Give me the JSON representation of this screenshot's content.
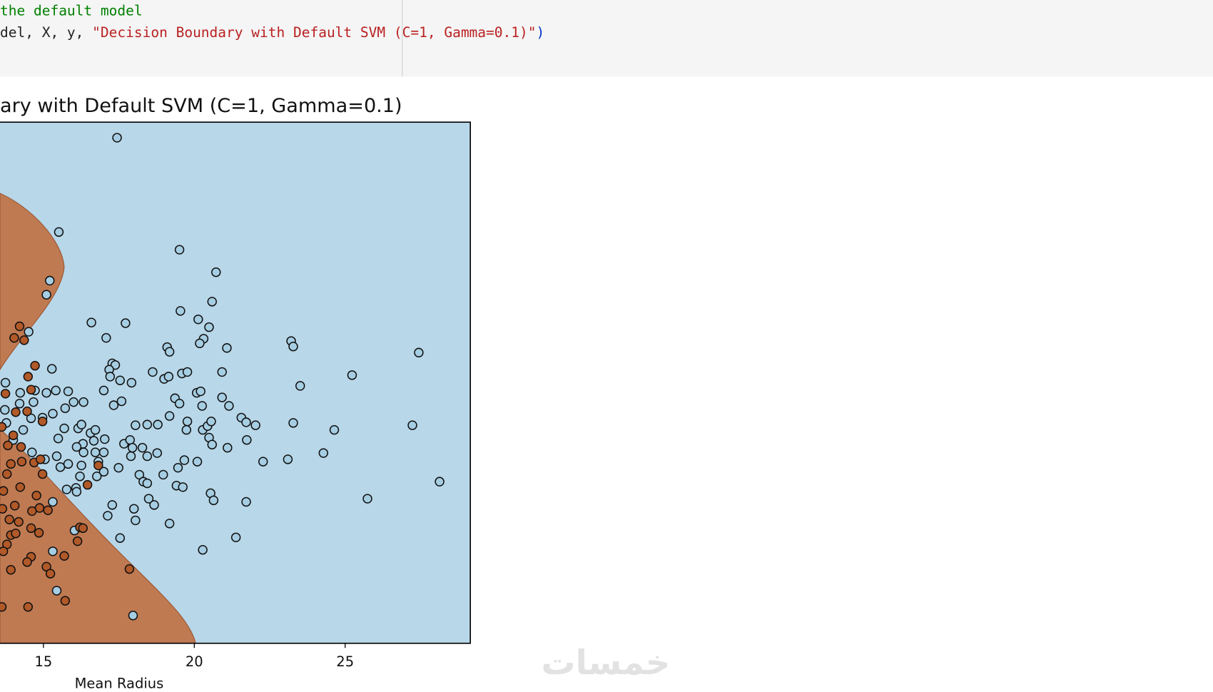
{
  "code": {
    "line0": "the default model",
    "line1": [
      "del, X, y, ",
      "\"Decision Boundary with Default SVM (C=1, Gamma=0.1)\"",
      ")"
    ]
  },
  "watermark": "خمسات",
  "chart_data": {
    "type": "scatter",
    "title": "ary with Default SVM (C=1, Gamma=0.1)",
    "x_label": "Mean Radius",
    "xlim": [
      13.56,
      29.15
    ],
    "ylim": [
      8.7,
      40.2
    ],
    "xticks": [
      15,
      20,
      25
    ],
    "series": [
      {
        "color": "#a6cee3",
        "x": [
          17.44,
          15.51,
          19.51,
          20.72,
          15.21,
          15.1,
          20.59,
          16.59,
          17.72,
          19.54,
          20.13,
          20.49,
          17.08,
          20.31,
          20.18,
          21.08,
          23.21,
          23.28,
          27.44,
          19.1,
          19.18,
          17.28,
          17.38,
          17.18,
          17.21,
          17.54,
          17.92,
          18.62,
          19.0,
          19.15,
          19.59,
          19.77,
          20.92,
          25.23,
          23.51,
          17.0,
          17.33,
          17.59,
          19.36,
          19.51,
          20.08,
          20.21,
          20.26,
          20.92,
          21.15,
          21.56,
          21.72,
          22.03,
          23.28,
          24.64,
          27.23,
          18.05,
          18.44,
          18.79,
          19.18,
          19.77,
          19.74,
          20.28,
          20.44,
          20.56,
          20.49,
          20.59,
          21.1,
          21.74,
          22.28,
          23.1,
          24.28,
          17.67,
          17.87,
          17.95,
          18.28,
          18.44,
          18.77,
          17.9,
          17.49,
          17.03,
          17.0,
          16.72,
          16.33,
          16.31,
          16.1,
          16.82,
          17.0,
          16.26,
          16.21,
          16.08,
          15.77,
          16.1,
          16.77,
          18.18,
          18.31,
          18.44,
          18.97,
          19.46,
          19.41,
          19.62,
          19.67,
          20.1,
          20.54,
          20.64,
          21.72,
          25.74,
          28.13,
          17.28,
          18.0,
          18.05,
          18.49,
          18.67,
          19.18,
          17.13,
          17.54,
          20.28,
          21.38,
          16.03,
          15.31,
          15.44,
          17.97,
          15.31,
          15.1,
          15.28,
          14.51,
          14.23,
          14.72,
          14.67,
          14.21,
          14.59,
          14.97,
          15.31,
          15.41,
          15.82,
          16.0,
          16.33,
          15.72,
          15.69,
          16.15,
          16.26,
          16.56,
          16.72,
          16.67,
          15.49,
          15.05,
          15.44,
          15.56,
          15.82,
          14.62,
          14.33,
          13.74,
          13.77,
          14.0,
          13.72
        ],
        "values": [
          39.26,
          33.56,
          32.49,
          31.13,
          30.62,
          29.77,
          29.35,
          28.09,
          28.05,
          28.79,
          28.28,
          27.81,
          27.16,
          27.11,
          26.83,
          26.55,
          26.97,
          26.64,
          26.27,
          26.6,
          26.32,
          25.62,
          25.52,
          25.24,
          24.82,
          24.59,
          24.45,
          25.1,
          24.68,
          24.82,
          25.01,
          25.1,
          25.1,
          24.91,
          24.26,
          23.98,
          23.09,
          23.33,
          23.51,
          23.19,
          23.84,
          23.93,
          23.05,
          23.56,
          23.05,
          22.34,
          22.06,
          21.88,
          22.02,
          21.6,
          21.88,
          21.88,
          21.92,
          21.92,
          22.44,
          22.11,
          21.6,
          21.6,
          21.83,
          22.11,
          21.13,
          20.71,
          20.52,
          20.99,
          19.68,
          19.82,
          20.2,
          20.76,
          20.99,
          20.52,
          20.52,
          20.01,
          20.2,
          20.01,
          19.31,
          21.04,
          20.24,
          20.24,
          20.24,
          20.76,
          20.57,
          19.68,
          19.07,
          19.45,
          18.79,
          18.09,
          18.0,
          17.86,
          18.79,
          18.89,
          18.47,
          18.37,
          18.89,
          19.31,
          18.23,
          18.14,
          19.77,
          19.68,
          17.77,
          17.34,
          17.25,
          17.44,
          18.47,
          17.06,
          16.83,
          16.13,
          17.44,
          17.06,
          15.94,
          16.41,
          15.06,
          14.35,
          15.1,
          15.52,
          14.26,
          11.88,
          10.38,
          17.25,
          23.84,
          25.29,
          27.53,
          23.84,
          23.98,
          23.28,
          23.19,
          22.3,
          22.34,
          22.58,
          23.98,
          23.93,
          23.28,
          23.28,
          22.91,
          21.69,
          21.69,
          21.92,
          21.41,
          21.6,
          20.94,
          21.08,
          19.82,
          20.01,
          19.35,
          19.54,
          20.24,
          21.6,
          24.45,
          22.02,
          20.99,
          22.81
        ]
      },
      {
        "color": "#b15928",
        "x": [
          14.21,
          14.03,
          14.36,
          14.72,
          14.49,
          14.59,
          13.74,
          14.08,
          14.46,
          14.97,
          13.62,
          14.0,
          13.82,
          14.26,
          13.92,
          14.28,
          14.69,
          14.9,
          14.97,
          13.79,
          13.67,
          14.23,
          14.77,
          14.87,
          15.15,
          14.05,
          13.64,
          14.62,
          13.87,
          14.18,
          13.92,
          13.79,
          14.59,
          14.85,
          16.21,
          16.31,
          16.13,
          15.69,
          15.1,
          15.23,
          14.59,
          14.46,
          13.92,
          13.67,
          17.85,
          15.72,
          14.49,
          13.62,
          16.46,
          16.82,
          14.08
        ],
        "values": [
          27.86,
          27.16,
          27.02,
          25.48,
          24.82,
          24.03,
          23.79,
          22.67,
          22.72,
          22.11,
          21.78,
          21.27,
          20.66,
          20.57,
          19.54,
          19.68,
          19.63,
          19.82,
          18.93,
          18.93,
          17.91,
          18.14,
          17.63,
          16.88,
          16.74,
          17.02,
          16.83,
          16.69,
          16.18,
          16.04,
          15.24,
          14.68,
          15.66,
          15.38,
          15.71,
          15.66,
          14.87,
          13.98,
          13.33,
          12.91,
          13.93,
          13.61,
          13.14,
          14.26,
          13.19,
          11.27,
          10.9,
          10.9,
          18.28,
          19.45,
          15.34
        ]
      }
    ]
  }
}
